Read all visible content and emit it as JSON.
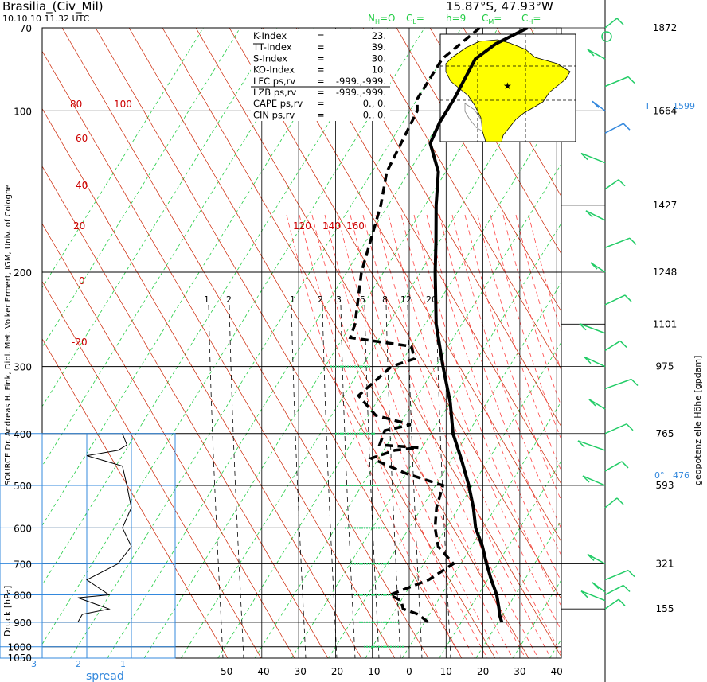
{
  "header": {
    "station": "Brasilia_(Civ_Mil)",
    "datetime": "10.10.10   11.32 UTC",
    "location": "15.87°S, 47.93°W",
    "cloud_codes": [
      {
        "text": "N",
        "sub": "H",
        "rest": "=O",
        "color": "#22cc44"
      },
      {
        "text": "C",
        "sub": "L",
        "rest": "=",
        "color": "#22cc44"
      },
      {
        "text": "h=9",
        "sub": "",
        "rest": "",
        "color": "#22cc44"
      },
      {
        "text": "C",
        "sub": "M",
        "rest": "=",
        "color": "#22cc44"
      },
      {
        "text": "C",
        "sub": "H",
        "rest": "=",
        "color": "#22cc44"
      }
    ]
  },
  "source_label": "SOURCE Dr. Andreas H. Fink, Dipl. Met. Volker Ermert, IGM, Univ. of Cologne",
  "left_axis_title": "Druck [hPa]",
  "right_axis_title": "geopotenzielle Höhe [gpdam]",
  "indices": [
    {
      "label": "K-Index",
      "op": "=",
      "value": "23."
    },
    {
      "label": "TT-Index",
      "op": "=",
      "value": "39."
    },
    {
      "label": "S-Index",
      "op": "=",
      "value": "30."
    },
    {
      "label": "KO-Index",
      "op": "=",
      "value": "10."
    },
    {
      "label": "LFC  ps,rv",
      "op": "=",
      "value": "-999.,-999."
    },
    {
      "label": "LZB  ps,rv",
      "op": "=",
      "value": "-999.,-999."
    },
    {
      "label": "CAPE ps,rv",
      "op": "=",
      "value": "0.,   0."
    },
    {
      "label": "CIN  ps,rv",
      "op": "=",
      "value": "0.,   0."
    }
  ],
  "map": {
    "region": "South America",
    "marker": "station-star",
    "land_color": "#ffff00",
    "ocean_color": "#ffffff"
  },
  "tropopause_label": "T",
  "tropopause_height": "1599",
  "freezing_label": "0°",
  "freezing_height": "476",
  "colors": {
    "dry_adiabat": "#ff4444",
    "moist_adiabat": "#cc2200",
    "isotherm_skew": "#22cc44",
    "mixing_ratio": "#000000",
    "grid": "#000000",
    "spread_grid": "#3388dd",
    "wind_barb": "#22cc66",
    "blue_label": "#3388dd",
    "red_label": "#cc0000"
  },
  "chart_data": {
    "type": "line",
    "title": "Brasilia_(Civ_Mil)",
    "xlabel": "",
    "ylabel": "Druck [hPa]",
    "y_scale": "log",
    "x_ticks": [
      -50,
      -40,
      -30,
      -20,
      -10,
      0,
      10,
      20,
      30,
      40
    ],
    "pressure_ticks": [
      70,
      100,
      200,
      300,
      400,
      500,
      600,
      700,
      800,
      900,
      1000,
      1050
    ],
    "height_ticks": [
      "1872",
      "1664",
      "1427",
      "1248",
      "1101",
      "975",
      "765",
      "593",
      "321",
      "155"
    ],
    "height_tick_pressures": [
      70,
      100,
      150,
      200,
      250,
      300,
      400,
      500,
      700,
      850
    ],
    "theta_labels": [
      {
        "text": "80",
        "p": 110
      },
      {
        "text": "100",
        "p": 110
      },
      {
        "text": "60",
        "p": 140
      },
      {
        "text": "40",
        "p": 170
      },
      {
        "text": "20",
        "p": 210
      },
      {
        "text": "0",
        "p": 280
      },
      {
        "text": "-20",
        "p": 355
      },
      {
        "text": "120",
        "p": 210
      },
      {
        "text": "140",
        "p": 210
      },
      {
        "text": "160",
        "p": 210
      }
    ],
    "mixing_ratio_labels": [
      "1",
      "2",
      "1",
      "2",
      "3",
      "5",
      "8",
      "12",
      "20"
    ],
    "series": [
      {
        "name": "Temperatur",
        "style": "solid",
        "points": [
          {
            "p": 70,
            "t": -72
          },
          {
            "p": 75,
            "t": -78
          },
          {
            "p": 80,
            "t": -81
          },
          {
            "p": 95,
            "t": -80
          },
          {
            "p": 100,
            "t": -80
          },
          {
            "p": 105,
            "t": -80
          },
          {
            "p": 115,
            "t": -79
          },
          {
            "p": 130,
            "t": -72
          },
          {
            "p": 150,
            "t": -67
          },
          {
            "p": 175,
            "t": -61
          },
          {
            "p": 200,
            "t": -56
          },
          {
            "p": 250,
            "t": -47
          },
          {
            "p": 300,
            "t": -38
          },
          {
            "p": 350,
            "t": -30
          },
          {
            "p": 400,
            "t": -24
          },
          {
            "p": 450,
            "t": -17
          },
          {
            "p": 500,
            "t": -11
          },
          {
            "p": 550,
            "t": -6
          },
          {
            "p": 600,
            "t": -2
          },
          {
            "p": 650,
            "t": 3
          },
          {
            "p": 700,
            "t": 7
          },
          {
            "p": 750,
            "t": 11
          },
          {
            "p": 800,
            "t": 15
          },
          {
            "p": 850,
            "t": 18
          },
          {
            "p": 870,
            "t": 19
          },
          {
            "p": 900,
            "t": 21
          }
        ]
      },
      {
        "name": "Taupunkt",
        "style": "dashed",
        "points": [
          {
            "p": 70,
            "t": -85
          },
          {
            "p": 80,
            "t": -90
          },
          {
            "p": 95,
            "t": -90
          },
          {
            "p": 100,
            "t": -88
          },
          {
            "p": 130,
            "t": -86
          },
          {
            "p": 150,
            "t": -82
          },
          {
            "p": 200,
            "t": -76
          },
          {
            "p": 250,
            "t": -69
          },
          {
            "p": 265,
            "t": -68
          },
          {
            "p": 275,
            "t": -50
          },
          {
            "p": 290,
            "t": -47
          },
          {
            "p": 300,
            "t": -52
          },
          {
            "p": 340,
            "t": -56
          },
          {
            "p": 370,
            "t": -48
          },
          {
            "p": 385,
            "t": -37
          },
          {
            "p": 395,
            "t": -43
          },
          {
            "p": 420,
            "t": -42
          },
          {
            "p": 425,
            "t": -31
          },
          {
            "p": 430,
            "t": -37
          },
          {
            "p": 445,
            "t": -42
          },
          {
            "p": 475,
            "t": -30
          },
          {
            "p": 500,
            "t": -18
          },
          {
            "p": 550,
            "t": -16
          },
          {
            "p": 600,
            "t": -13
          },
          {
            "p": 650,
            "t": -9
          },
          {
            "p": 700,
            "t": -2
          },
          {
            "p": 750,
            "t": -6
          },
          {
            "p": 800,
            "t": -14
          },
          {
            "p": 820,
            "t": -10
          },
          {
            "p": 850,
            "t": -8
          },
          {
            "p": 870,
            "t": -3
          },
          {
            "p": 900,
            "t": 1
          }
        ]
      },
      {
        "name": "Spread",
        "style": "thin",
        "points": [
          {
            "p": 400,
            "t": 1.2
          },
          {
            "p": 420,
            "t": 1.1
          },
          {
            "p": 430,
            "t": 1.3
          },
          {
            "p": 440,
            "t": 2.0
          },
          {
            "p": 460,
            "t": 1.2
          },
          {
            "p": 500,
            "t": 1.1
          },
          {
            "p": 550,
            "t": 1.0
          },
          {
            "p": 600,
            "t": 1.2
          },
          {
            "p": 650,
            "t": 1.0
          },
          {
            "p": 700,
            "t": 1.3
          },
          {
            "p": 750,
            "t": 2.0
          },
          {
            "p": 800,
            "t": 1.5
          },
          {
            "p": 810,
            "t": 2.2
          },
          {
            "p": 850,
            "t": 1.5
          },
          {
            "p": 870,
            "t": 2.1
          },
          {
            "p": 900,
            "t": 2.2
          }
        ]
      }
    ],
    "spread_axis": {
      "label": "spread",
      "ticks": [
        "3",
        "2",
        "1"
      ]
    }
  }
}
